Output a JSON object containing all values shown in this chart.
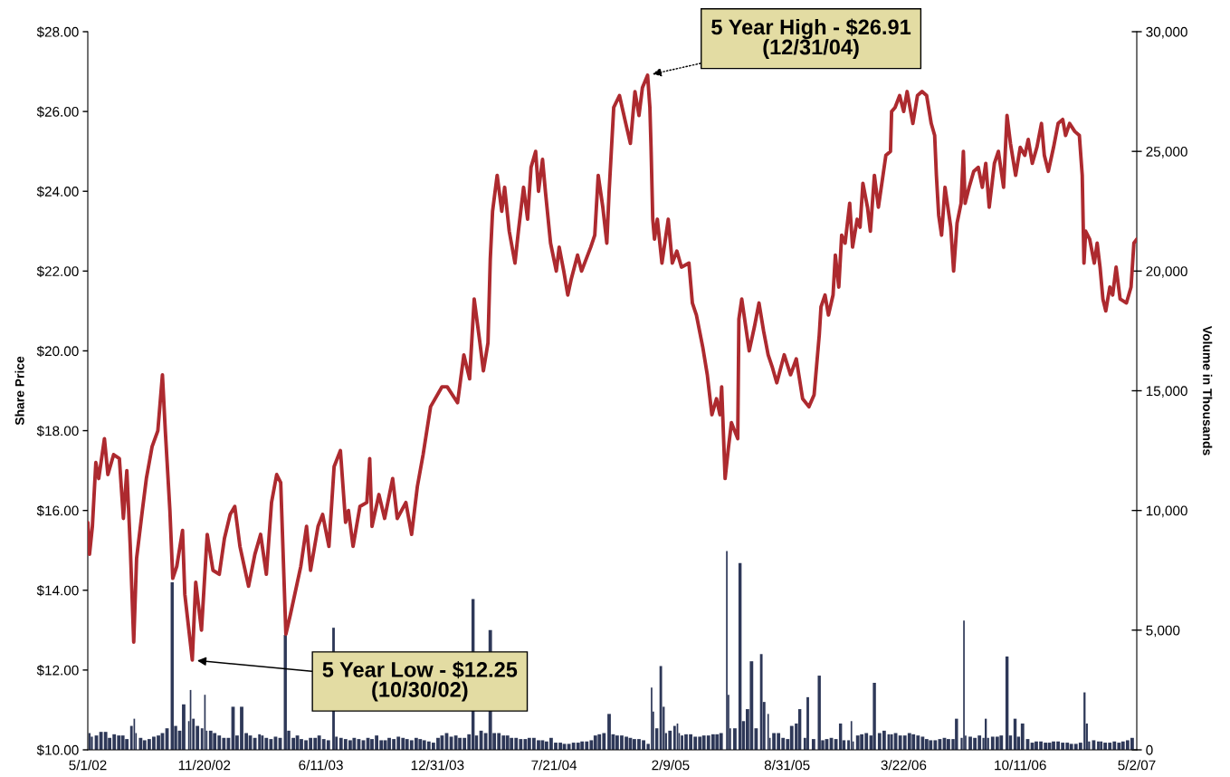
{
  "chart_data": {
    "type": "line",
    "ylabel": "Share Price",
    "y2label": "Volume in Thousands",
    "xlim": [
      "2002-05-01",
      "2007-05-02"
    ],
    "xticks": [
      {
        "value": "2002-05-01",
        "label": "5/1/02"
      },
      {
        "value": "2002-11-20",
        "label": "11/20/02"
      },
      {
        "value": "2003-06-11",
        "label": "6/11/03"
      },
      {
        "value": "2003-12-31",
        "label": "12/31/03"
      },
      {
        "value": "2004-07-21",
        "label": "7/21/04"
      },
      {
        "value": "2005-02-09",
        "label": "2/9/05"
      },
      {
        "value": "2005-08-31",
        "label": "8/31/05"
      },
      {
        "value": "2006-03-22",
        "label": "3/22/06"
      },
      {
        "value": "2006-10-11",
        "label": "10/11/06"
      },
      {
        "value": "2007-05-02",
        "label": "5/2/07"
      }
    ],
    "ylim": [
      10,
      28
    ],
    "yticks": [
      {
        "value": 10,
        "label": "$10.00"
      },
      {
        "value": 12,
        "label": "$12.00"
      },
      {
        "value": 14,
        "label": "$14.00"
      },
      {
        "value": 16,
        "label": "$16.00"
      },
      {
        "value": 18,
        "label": "$18.00"
      },
      {
        "value": 20,
        "label": "$20.00"
      },
      {
        "value": 22,
        "label": "$22.00"
      },
      {
        "value": 24,
        "label": "$24.00"
      },
      {
        "value": 26,
        "label": "$26.00"
      },
      {
        "value": 28,
        "label": "$28.00"
      }
    ],
    "y2lim": [
      0,
      30000
    ],
    "y2ticks": [
      0,
      {
        "value": 5000,
        "label": "5,000"
      },
      {
        "value": 10000,
        "label": "10,000"
      },
      {
        "value": 15000,
        "label": "15,000"
      },
      {
        "value": 20000,
        "label": "20,000"
      },
      {
        "value": 25000,
        "label": "25,000"
      },
      {
        "value": 30000,
        "label": "30,000"
      }
    ],
    "annotations": [
      {
        "text": "5 Year High - $26.91\n(12/31/04)",
        "x": "2004-12-31",
        "y": 26.91
      },
      {
        "text": "5 Year Low - $12.25\n(10/30/02)",
        "x": "2002-10-30",
        "y": 12.25
      }
    ],
    "series": [
      {
        "axis": "y",
        "color": "#ad2a2f",
        "x": [
          "2002-05-01",
          "2002-05-04",
          "2002-05-09",
          "2002-05-15",
          "2002-05-20",
          "2002-05-30",
          "2002-06-05",
          "2002-06-15",
          "2002-06-25",
          "2002-07-02",
          "2002-07-08",
          "2002-07-14",
          "2002-07-20",
          "2002-07-25",
          "2002-08-04",
          "2002-08-11",
          "2002-08-21",
          "2002-08-31",
          "2002-09-08",
          "2002-09-13",
          "2002-09-21",
          "2002-09-26",
          "2002-10-03",
          "2002-10-13",
          "2002-10-17",
          "2002-10-30",
          "2002-11-05",
          "2002-11-15",
          "2002-11-25",
          "2002-12-05",
          "2002-12-16",
          "2002-12-25",
          "2003-01-04",
          "2003-01-12",
          "2003-01-21",
          "2003-02-05",
          "2003-02-16",
          "2003-02-26",
          "2003-03-08",
          "2003-03-17",
          "2003-03-26",
          "2003-04-02",
          "2003-04-11",
          "2003-04-19",
          "2003-05-07",
          "2003-05-17",
          "2003-05-24",
          "2003-06-06",
          "2003-06-14",
          "2003-06-25",
          "2003-07-04",
          "2003-07-15",
          "2003-07-24",
          "2003-07-29",
          "2003-08-06",
          "2003-08-18",
          "2003-08-30",
          "2003-09-04",
          "2003-09-08",
          "2003-09-20",
          "2003-09-30",
          "2003-10-14",
          "2003-10-22",
          "2003-11-06",
          "2003-11-16",
          "2003-11-26",
          "2003-12-06",
          "2003-12-19",
          "2004-01-08",
          "2004-01-17",
          "2004-02-04",
          "2004-02-15",
          "2004-02-25",
          "2004-03-04",
          "2004-03-14",
          "2004-03-20",
          "2004-03-28",
          "2004-04-01",
          "2004-04-05",
          "2004-04-13",
          "2004-04-21",
          "2004-04-26",
          "2004-05-04",
          "2004-05-14",
          "2004-05-20",
          "2004-05-29",
          "2004-06-05",
          "2004-06-11",
          "2004-06-19",
          "2004-06-24",
          "2004-07-01",
          "2004-07-06",
          "2004-07-15",
          "2004-07-25",
          "2004-07-30",
          "2004-08-07",
          "2004-08-14",
          "2004-08-20",
          "2004-08-31",
          "2004-09-07",
          "2004-09-23",
          "2004-09-30",
          "2004-10-06",
          "2004-10-14",
          "2004-10-21",
          "2004-10-25",
          "2004-11-02",
          "2004-11-12",
          "2004-11-23",
          "2004-12-01",
          "2004-12-09",
          "2004-12-16",
          "2004-12-22",
          "2004-12-31",
          "2005-01-04",
          "2005-01-06",
          "2005-01-09",
          "2005-01-12",
          "2005-01-17",
          "2005-01-25",
          "2005-02-05",
          "2005-02-12",
          "2005-02-20",
          "2005-02-28",
          "2005-03-13",
          "2005-03-19",
          "2005-03-26",
          "2005-04-06",
          "2005-04-14",
          "2005-04-22",
          "2005-04-30",
          "2005-05-06",
          "2005-05-09",
          "2005-05-15",
          "2005-05-21",
          "2005-05-26",
          "2005-06-06",
          "2005-06-08",
          "2005-06-13",
          "2005-06-26",
          "2005-07-05",
          "2005-07-13",
          "2005-07-21",
          "2005-07-29",
          "2005-08-05",
          "2005-08-13",
          "2005-08-26",
          "2005-09-06",
          "2005-09-16",
          "2005-09-27",
          "2005-10-08",
          "2005-10-17",
          "2005-10-26",
          "2005-10-29",
          "2005-11-05",
          "2005-11-11",
          "2005-11-19",
          "2005-11-23",
          "2005-11-29",
          "2005-12-04",
          "2005-12-10",
          "2005-12-18",
          "2005-12-23",
          "2005-12-31",
          "2006-01-05",
          "2006-01-10",
          "2006-01-18",
          "2006-01-23",
          "2006-01-30",
          "2006-02-06",
          "2006-02-13",
          "2006-02-19",
          "2006-02-27",
          "2006-03-01",
          "2006-03-07",
          "2006-03-15",
          "2006-03-22",
          "2006-03-28",
          "2006-04-07",
          "2006-04-15",
          "2006-04-23",
          "2006-05-01",
          "2006-05-09",
          "2006-05-15",
          "2006-05-18",
          "2006-05-22",
          "2006-05-27",
          "2006-06-02",
          "2006-06-07",
          "2006-06-12",
          "2006-06-17",
          "2006-06-23",
          "2006-06-30",
          "2006-07-04",
          "2006-07-07",
          "2006-07-14",
          "2006-07-22",
          "2006-07-30",
          "2006-08-06",
          "2006-08-12",
          "2006-08-18",
          "2006-08-27",
          "2006-09-03",
          "2006-09-12",
          "2006-09-18",
          "2006-09-24",
          "2006-10-03",
          "2006-10-11",
          "2006-10-19",
          "2006-10-25",
          "2006-11-01",
          "2006-11-09",
          "2006-11-17",
          "2006-11-22",
          "2006-11-29",
          "2006-12-08",
          "2006-12-16",
          "2006-12-24",
          "2006-12-29",
          "2007-01-05",
          "2007-01-14",
          "2007-01-22",
          "2007-01-27",
          "2007-01-30",
          "2007-02-02",
          "2007-02-09",
          "2007-02-17",
          "2007-02-22",
          "2007-02-27",
          "2007-03-04",
          "2007-03-09",
          "2007-03-16",
          "2007-03-21",
          "2007-03-27",
          "2007-04-03",
          "2007-04-14",
          "2007-04-22",
          "2007-04-27",
          "2007-05-02"
        ],
        "values": [
          15.7,
          14.9,
          15.6,
          17.2,
          16.8,
          17.8,
          16.9,
          17.4,
          17.3,
          15.8,
          17.0,
          15.1,
          12.7,
          14.8,
          16.0,
          16.8,
          17.6,
          18.0,
          19.4,
          18.0,
          16.0,
          14.3,
          14.6,
          15.5,
          13.9,
          12.25,
          14.2,
          13.0,
          15.4,
          14.5,
          14.4,
          15.3,
          15.9,
          16.1,
          15.1,
          14.1,
          14.9,
          15.4,
          14.4,
          16.2,
          16.9,
          16.7,
          12.9,
          13.4,
          14.6,
          15.6,
          14.5,
          15.6,
          15.9,
          15.1,
          17.1,
          17.5,
          15.7,
          16.0,
          15.1,
          16.1,
          16.2,
          17.3,
          15.6,
          16.4,
          15.8,
          16.8,
          15.8,
          16.2,
          15.4,
          16.6,
          17.4,
          18.6,
          19.1,
          19.1,
          18.7,
          19.9,
          19.3,
          21.3,
          20.2,
          19.5,
          20.2,
          22.3,
          23.5,
          24.4,
          23.5,
          24.1,
          23.0,
          22.2,
          23.0,
          24.1,
          23.3,
          24.6,
          25.0,
          24.0,
          24.8,
          24.0,
          22.7,
          22.0,
          22.6,
          22.0,
          21.4,
          21.8,
          22.4,
          22.0,
          22.6,
          22.9,
          24.4,
          23.6,
          22.7,
          24.0,
          26.1,
          26.4,
          25.7,
          25.2,
          26.5,
          25.9,
          26.6,
          26.91,
          26.1,
          25.1,
          23.3,
          22.8,
          23.3,
          22.2,
          23.3,
          22.2,
          22.5,
          22.1,
          22.2,
          21.2,
          20.9,
          20.1,
          19.4,
          18.4,
          18.8,
          18.4,
          19.1,
          16.8,
          17.6,
          18.2,
          17.8,
          20.8,
          21.3,
          20.0,
          20.6,
          21.2,
          20.5,
          19.9,
          19.6,
          19.2,
          19.9,
          19.4,
          19.8,
          18.8,
          18.6,
          18.9,
          20.4,
          21.1,
          21.4,
          20.9,
          21.4,
          22.4,
          21.6,
          22.9,
          22.7,
          23.7,
          22.6,
          23.3,
          23.1,
          24.2,
          23.6,
          23.0,
          24.4,
          23.6,
          24.3,
          24.9,
          25.0,
          26.0,
          26.1,
          26.4,
          26.0,
          26.5,
          25.7,
          26.4,
          26.5,
          26.4,
          25.7,
          25.4,
          24.4,
          23.4,
          22.9,
          24.1,
          23.6,
          23.1,
          22.0,
          23.2,
          23.7,
          25.0,
          23.7,
          24.1,
          24.5,
          24.6,
          24.1,
          24.7,
          23.6,
          24.7,
          25.0,
          24.1,
          25.9,
          25.2,
          24.4,
          25.1,
          24.9,
          25.3,
          24.7,
          25.1,
          25.7,
          24.9,
          24.5,
          25.1,
          25.7,
          25.8,
          25.4,
          25.7,
          25.5,
          25.4,
          24.4,
          22.2,
          23.0,
          22.8,
          22.2,
          22.7,
          22.1,
          21.3,
          21.0,
          21.6,
          21.4,
          22.1,
          21.3,
          21.2,
          21.6,
          22.7,
          22.8
        ]
      },
      {
        "type": "bar",
        "axis": "y2",
        "color": "#2e3858",
        "x": [
          "2002-05-04",
          "2002-05-08",
          "2002-05-16",
          "2002-05-24",
          "2002-06-01",
          "2002-06-08",
          "2002-06-16",
          "2002-06-24",
          "2002-07-01",
          "2002-07-08",
          "2002-07-16",
          "2002-07-21",
          "2002-07-24",
          "2002-08-01",
          "2002-08-08",
          "2002-08-16",
          "2002-08-24",
          "2002-09-01",
          "2002-09-08",
          "2002-09-16",
          "2002-09-25",
          "2002-10-01",
          "2002-10-08",
          "2002-10-15",
          "2002-10-24",
          "2002-10-27",
          "2002-11-01",
          "2002-11-08",
          "2002-11-16",
          "2002-11-21",
          "2002-11-24",
          "2002-12-01",
          "2002-12-08",
          "2002-12-16",
          "2002-12-24",
          "2003-01-01",
          "2003-01-09",
          "2003-01-16",
          "2003-01-24",
          "2003-02-01",
          "2003-02-08",
          "2003-02-16",
          "2003-02-24",
          "2003-03-01",
          "2003-03-08",
          "2003-03-16",
          "2003-03-24",
          "2003-04-01",
          "2003-04-10",
          "2003-04-16",
          "2003-04-24",
          "2003-05-01",
          "2003-05-08",
          "2003-05-16",
          "2003-05-24",
          "2003-06-01",
          "2003-06-08",
          "2003-06-16",
          "2003-06-24",
          "2003-07-03",
          "2003-07-08",
          "2003-07-16",
          "2003-07-24",
          "2003-08-01",
          "2003-08-08",
          "2003-08-16",
          "2003-08-24",
          "2003-09-01",
          "2003-09-08",
          "2003-09-16",
          "2003-09-24",
          "2003-10-01",
          "2003-10-08",
          "2003-10-16",
          "2003-10-24",
          "2003-11-01",
          "2003-11-08",
          "2003-11-16",
          "2003-11-24",
          "2003-12-01",
          "2003-12-08",
          "2003-12-16",
          "2003-12-24",
          "2004-01-01",
          "2004-01-08",
          "2004-01-16",
          "2004-01-24",
          "2004-02-01",
          "2004-02-08",
          "2004-02-16",
          "2004-02-24",
          "2004-03-02",
          "2004-03-08",
          "2004-03-16",
          "2004-03-24",
          "2004-04-01",
          "2004-04-08",
          "2004-04-16",
          "2004-04-24",
          "2004-05-01",
          "2004-05-08",
          "2004-05-16",
          "2004-05-24",
          "2004-06-01",
          "2004-06-08",
          "2004-06-16",
          "2004-06-24",
          "2004-07-01",
          "2004-07-08",
          "2004-07-16",
          "2004-07-24",
          "2004-08-01",
          "2004-08-08",
          "2004-08-16",
          "2004-08-24",
          "2004-09-01",
          "2004-09-08",
          "2004-09-16",
          "2004-09-24",
          "2004-10-01",
          "2004-10-08",
          "2004-10-16",
          "2004-10-25",
          "2004-11-01",
          "2004-11-08",
          "2004-11-16",
          "2004-11-24",
          "2004-12-01",
          "2004-12-08",
          "2004-12-16",
          "2004-12-24",
          "2005-01-01",
          "2005-01-07",
          "2005-01-10",
          "2005-01-16",
          "2005-01-23",
          "2005-01-28",
          "2005-02-01",
          "2005-02-08",
          "2005-02-16",
          "2005-02-21",
          "2005-02-24",
          "2005-03-01",
          "2005-03-08",
          "2005-03-16",
          "2005-03-24",
          "2005-04-01",
          "2005-04-08",
          "2005-04-16",
          "2005-04-24",
          "2005-05-01",
          "2005-05-08",
          "2005-05-18",
          "2005-05-21",
          "2005-05-24",
          "2005-06-01",
          "2005-06-10",
          "2005-06-16",
          "2005-06-23",
          "2005-06-30",
          "2005-07-08",
          "2005-07-17",
          "2005-07-22",
          "2005-07-29",
          "2005-08-01",
          "2005-08-08",
          "2005-08-16",
          "2005-08-24",
          "2005-09-01",
          "2005-09-08",
          "2005-09-16",
          "2005-09-22",
          "2005-10-01",
          "2005-10-06",
          "2005-10-16",
          "2005-10-26",
          "2005-11-01",
          "2005-11-08",
          "2005-11-16",
          "2005-11-24",
          "2005-12-02",
          "2005-12-08",
          "2005-12-16",
          "2005-12-21",
          "2005-12-24",
          "2006-01-01",
          "2006-01-08",
          "2006-01-16",
          "2006-01-24",
          "2006-01-30",
          "2006-02-08",
          "2006-02-16",
          "2006-02-24",
          "2006-03-01",
          "2006-03-08",
          "2006-03-16",
          "2006-03-24",
          "2006-04-01",
          "2006-04-08",
          "2006-04-16",
          "2006-04-24",
          "2006-05-01",
          "2006-05-08",
          "2006-05-16",
          "2006-05-24",
          "2006-06-01",
          "2006-06-08",
          "2006-06-16",
          "2006-06-22",
          "2006-07-01",
          "2006-07-05",
          "2006-07-08",
          "2006-07-16",
          "2006-07-24",
          "2006-08-01",
          "2006-08-08",
          "2006-08-12",
          "2006-08-16",
          "2006-08-24",
          "2006-09-01",
          "2006-09-08",
          "2006-09-18",
          "2006-09-24",
          "2006-10-02",
          "2006-10-08",
          "2006-10-15",
          "2006-10-24",
          "2006-11-01",
          "2006-11-08",
          "2006-11-16",
          "2006-11-24",
          "2006-12-01",
          "2006-12-08",
          "2006-12-16",
          "2006-12-24",
          "2007-01-01",
          "2007-01-08",
          "2007-01-16",
          "2007-01-24",
          "2007-01-31",
          "2007-02-04",
          "2007-02-08",
          "2007-02-16",
          "2007-02-24",
          "2007-03-01",
          "2007-03-08",
          "2007-03-16",
          "2007-03-24",
          "2007-04-01",
          "2007-04-08",
          "2007-04-16",
          "2007-04-24"
        ],
        "values": [
          700,
          550,
          600,
          750,
          750,
          500,
          650,
          600,
          600,
          450,
          1000,
          1300,
          700,
          500,
          400,
          450,
          550,
          600,
          700,
          900,
          7000,
          1000,
          800,
          1900,
          1200,
          2500,
          1300,
          1000,
          900,
          2300,
          800,
          800,
          700,
          600,
          500,
          500,
          1800,
          600,
          1800,
          700,
          600,
          500,
          650,
          600,
          500,
          450,
          550,
          500,
          4800,
          800,
          500,
          600,
          450,
          400,
          500,
          500,
          600,
          450,
          400,
          5100,
          550,
          500,
          450,
          400,
          500,
          450,
          400,
          500,
          450,
          600,
          400,
          400,
          500,
          450,
          550,
          500,
          450,
          400,
          500,
          450,
          400,
          350,
          300,
          500,
          600,
          700,
          550,
          600,
          500,
          500,
          650,
          6300,
          600,
          800,
          700,
          5000,
          700,
          700,
          600,
          600,
          500,
          500,
          450,
          450,
          500,
          500,
          400,
          400,
          350,
          500,
          300,
          300,
          250,
          250,
          300,
          300,
          350,
          350,
          400,
          600,
          650,
          700,
          1500,
          650,
          600,
          600,
          550,
          500,
          450,
          450,
          400,
          250,
          2600,
          1600,
          900,
          3500,
          1800,
          700,
          800,
          1000,
          1100,
          700,
          600,
          650,
          650,
          550,
          550,
          600,
          600,
          650,
          650,
          700,
          8300,
          2300,
          900,
          900,
          7800,
          1200,
          1700,
          3700,
          900,
          4000,
          2000,
          1500,
          500,
          700,
          700,
          500,
          450,
          1000,
          1100,
          1700,
          500,
          2200,
          450,
          3100,
          400,
          450,
          500,
          450,
          1100,
          400,
          400,
          1200,
          350,
          600,
          650,
          700,
          600,
          2800,
          700,
          800,
          650,
          650,
          700,
          600,
          600,
          700,
          650,
          600,
          550,
          450,
          400,
          400,
          450,
          500,
          450,
          450,
          1300,
          500,
          5400,
          600,
          550,
          500,
          600,
          500,
          1300,
          500,
          550,
          550,
          600,
          3900,
          600,
          1300,
          550,
          1100,
          450,
          300,
          350,
          350,
          300,
          300,
          350,
          350,
          300,
          300,
          250,
          250,
          300,
          2400,
          1100,
          350,
          400,
          350,
          350,
          300,
          300,
          350,
          300,
          350,
          400,
          500
        ]
      }
    ]
  }
}
